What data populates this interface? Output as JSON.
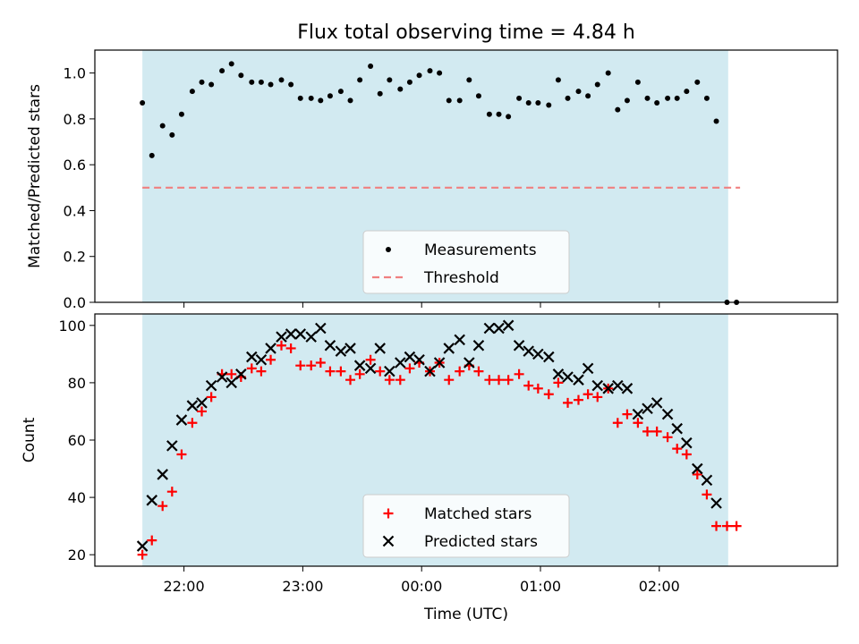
{
  "chart_data": {
    "title": "Flux total observing time = 4.84 h",
    "xlabel": "Time (UTC)",
    "shaded_region": {
      "x": [
        21.65,
        26.58
      ],
      "color": "#add8e6"
    },
    "x_ticks": [
      {
        "value": 22,
        "label": "22:00"
      },
      {
        "value": 23,
        "label": "23:00"
      },
      {
        "value": 24,
        "label": "00:00"
      },
      {
        "value": 25,
        "label": "01:00"
      },
      {
        "value": 26,
        "label": "02:00"
      }
    ],
    "xlim": [
      21.25,
      27.5
    ],
    "panels": [
      {
        "type": "scatter",
        "ylabel": "Matched/Predicted stars",
        "ylim": [
          0,
          1.1
        ],
        "y_ticks": [
          "0.0",
          "0.2",
          "0.4",
          "0.6",
          "0.8",
          "1.0"
        ],
        "legend": {
          "placement": "bottom-center",
          "entries": [
            "Measurements",
            "Threshold"
          ]
        },
        "series": [
          {
            "name": "Measurements",
            "color": "#000000",
            "marker": "dot",
            "points": [
              [
                21.65,
                0.87
              ],
              [
                21.73,
                0.64
              ],
              [
                21.82,
                0.77
              ],
              [
                21.9,
                0.73
              ],
              [
                21.98,
                0.82
              ],
              [
                22.07,
                0.92
              ],
              [
                22.15,
                0.96
              ],
              [
                22.23,
                0.95
              ],
              [
                22.32,
                1.01
              ],
              [
                22.4,
                1.04
              ],
              [
                22.48,
                0.99
              ],
              [
                22.57,
                0.96
              ],
              [
                22.65,
                0.96
              ],
              [
                22.73,
                0.95
              ],
              [
                22.82,
                0.97
              ],
              [
                22.9,
                0.95
              ],
              [
                22.98,
                0.89
              ],
              [
                23.07,
                0.89
              ],
              [
                23.15,
                0.88
              ],
              [
                23.23,
                0.9
              ],
              [
                23.32,
                0.92
              ],
              [
                23.4,
                0.88
              ],
              [
                23.48,
                0.97
              ],
              [
                23.57,
                1.03
              ],
              [
                23.65,
                0.91
              ],
              [
                23.73,
                0.97
              ],
              [
                23.82,
                0.93
              ],
              [
                23.9,
                0.96
              ],
              [
                23.98,
                0.99
              ],
              [
                24.07,
                1.01
              ],
              [
                24.15,
                1.0
              ],
              [
                24.23,
                0.88
              ],
              [
                24.32,
                0.88
              ],
              [
                24.4,
                0.97
              ],
              [
                24.48,
                0.9
              ],
              [
                24.57,
                0.82
              ],
              [
                24.65,
                0.82
              ],
              [
                24.73,
                0.81
              ],
              [
                24.82,
                0.89
              ],
              [
                24.9,
                0.87
              ],
              [
                24.98,
                0.87
              ],
              [
                25.07,
                0.86
              ],
              [
                25.15,
                0.97
              ],
              [
                25.23,
                0.89
              ],
              [
                25.32,
                0.92
              ],
              [
                25.4,
                0.9
              ],
              [
                25.48,
                0.95
              ],
              [
                25.57,
                1.0
              ],
              [
                25.65,
                0.84
              ],
              [
                25.73,
                0.88
              ],
              [
                25.82,
                0.96
              ],
              [
                25.9,
                0.89
              ],
              [
                25.98,
                0.87
              ],
              [
                26.07,
                0.89
              ],
              [
                26.15,
                0.89
              ],
              [
                26.23,
                0.92
              ],
              [
                26.32,
                0.96
              ],
              [
                26.4,
                0.89
              ],
              [
                26.48,
                0.79
              ],
              [
                26.57,
                0.0
              ],
              [
                26.65,
                0.0
              ]
            ]
          },
          {
            "name": "Threshold",
            "color": "#f08080",
            "style": "dashed",
            "x": [
              21.65,
              26.68
            ],
            "y": [
              0.5,
              0.5
            ]
          }
        ]
      },
      {
        "type": "scatter",
        "ylabel": "Count",
        "ylim": [
          16,
          104
        ],
        "y_ticks": [
          "20",
          "40",
          "60",
          "80",
          "100"
        ],
        "legend": {
          "placement": "bottom-center",
          "entries": [
            "Matched stars",
            "Predicted stars"
          ]
        },
        "series": [
          {
            "name": "Matched stars",
            "color": "#ff0000",
            "marker": "plus",
            "points": [
              [
                21.65,
                20
              ],
              [
                21.73,
                25
              ],
              [
                21.82,
                37
              ],
              [
                21.9,
                42
              ],
              [
                21.98,
                55
              ],
              [
                22.07,
                66
              ],
              [
                22.15,
                70
              ],
              [
                22.23,
                75
              ],
              [
                22.32,
                83
              ],
              [
                22.4,
                83
              ],
              [
                22.48,
                82
              ],
              [
                22.57,
                85
              ],
              [
                22.65,
                84
              ],
              [
                22.73,
                88
              ],
              [
                22.82,
                93
              ],
              [
                22.9,
                92
              ],
              [
                22.98,
                86
              ],
              [
                23.07,
                86
              ],
              [
                23.15,
                87
              ],
              [
                23.23,
                84
              ],
              [
                23.32,
                84
              ],
              [
                23.4,
                81
              ],
              [
                23.48,
                83
              ],
              [
                23.57,
                88
              ],
              [
                23.65,
                84
              ],
              [
                23.73,
                81
              ],
              [
                23.82,
                81
              ],
              [
                23.9,
                85
              ],
              [
                23.98,
                87
              ],
              [
                24.07,
                84
              ],
              [
                24.15,
                87
              ],
              [
                24.23,
                81
              ],
              [
                24.32,
                84
              ],
              [
                24.4,
                86
              ],
              [
                24.48,
                84
              ],
              [
                24.57,
                81
              ],
              [
                24.65,
                81
              ],
              [
                24.73,
                81
              ],
              [
                24.82,
                83
              ],
              [
                24.9,
                79
              ],
              [
                24.98,
                78
              ],
              [
                25.07,
                76
              ],
              [
                25.15,
                80
              ],
              [
                25.23,
                73
              ],
              [
                25.32,
                74
              ],
              [
                25.4,
                76
              ],
              [
                25.48,
                75
              ],
              [
                25.57,
                78
              ],
              [
                25.65,
                66
              ],
              [
                25.73,
                69
              ],
              [
                25.82,
                66
              ],
              [
                25.9,
                63
              ],
              [
                25.98,
                63
              ],
              [
                26.07,
                61
              ],
              [
                26.15,
                57
              ],
              [
                26.23,
                55
              ],
              [
                26.32,
                48
              ],
              [
                26.4,
                41
              ],
              [
                26.48,
                30
              ],
              [
                26.57,
                30
              ],
              [
                26.65,
                30
              ]
            ]
          },
          {
            "name": "Predicted stars",
            "color": "#000000",
            "marker": "x",
            "points": [
              [
                21.65,
                23
              ],
              [
                21.73,
                39
              ],
              [
                21.82,
                48
              ],
              [
                21.9,
                58
              ],
              [
                21.98,
                67
              ],
              [
                22.07,
                72
              ],
              [
                22.15,
                73
              ],
              [
                22.23,
                79
              ],
              [
                22.32,
                82
              ],
              [
                22.4,
                80
              ],
              [
                22.48,
                83
              ],
              [
                22.57,
                89
              ],
              [
                22.65,
                88
              ],
              [
                22.73,
                92
              ],
              [
                22.82,
                96
              ],
              [
                22.9,
                97
              ],
              [
                22.98,
                97
              ],
              [
                23.07,
                96
              ],
              [
                23.15,
                99
              ],
              [
                23.23,
                93
              ],
              [
                23.32,
                91
              ],
              [
                23.4,
                92
              ],
              [
                23.48,
                86
              ],
              [
                23.57,
                85
              ],
              [
                23.65,
                92
              ],
              [
                23.73,
                84
              ],
              [
                23.82,
                87
              ],
              [
                23.9,
                89
              ],
              [
                23.98,
                88
              ],
              [
                24.07,
                84
              ],
              [
                24.15,
                87
              ],
              [
                24.23,
                92
              ],
              [
                24.32,
                95
              ],
              [
                24.4,
                87
              ],
              [
                24.48,
                93
              ],
              [
                24.57,
                99
              ],
              [
                24.65,
                99
              ],
              [
                24.73,
                100
              ],
              [
                24.82,
                93
              ],
              [
                24.9,
                91
              ],
              [
                24.98,
                90
              ],
              [
                25.07,
                89
              ],
              [
                25.15,
                83
              ],
              [
                25.23,
                82
              ],
              [
                25.32,
                81
              ],
              [
                25.4,
                85
              ],
              [
                25.48,
                79
              ],
              [
                25.57,
                78
              ],
              [
                25.65,
                79
              ],
              [
                25.73,
                78
              ],
              [
                25.82,
                69
              ],
              [
                25.9,
                71
              ],
              [
                25.98,
                73
              ],
              [
                26.07,
                69
              ],
              [
                26.15,
                64
              ],
              [
                26.23,
                59
              ],
              [
                26.32,
                50
              ],
              [
                26.4,
                46
              ],
              [
                26.48,
                38
              ]
            ]
          }
        ]
      }
    ]
  }
}
